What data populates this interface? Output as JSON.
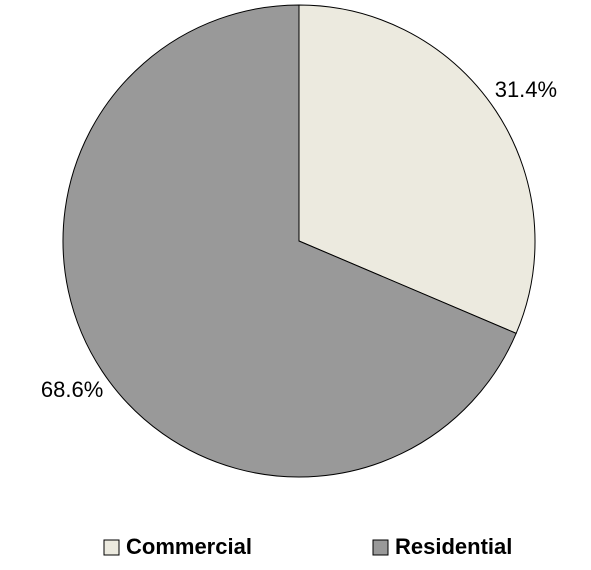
{
  "chart_data": {
    "type": "pie",
    "title": "",
    "categories": [
      "Commercial",
      "Residential"
    ],
    "values": [
      31.4,
      68.6
    ],
    "value_labels": [
      "31.4%",
      "68.6%"
    ],
    "unit": "%",
    "legend_position": "bottom",
    "colors": [
      "#ECEADF",
      "#999999"
    ],
    "outline_color": "#000000"
  }
}
